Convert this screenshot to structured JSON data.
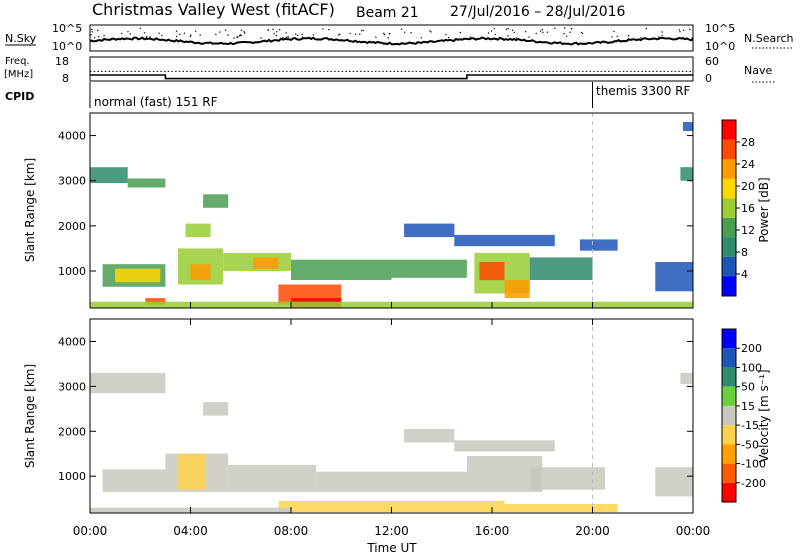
{
  "header": {
    "station": "Christmas Valley West (fitACF)",
    "beam": "Beam 21",
    "date_range": "27/Jul/2016 – 28/Jul/2016"
  },
  "meta_panels": {
    "nsky_label": "N.Sky",
    "nsky_tick_top": "10^5",
    "nsky_tick_bottom": "10^0",
    "nsearch_label": "N.Search",
    "nsearch_tick_top": "10^5",
    "nsearch_tick_bottom": "10^0",
    "freq_label_line1": "Freq.",
    "freq_label_line2": "[MHz]",
    "freq_tick_top": "18",
    "freq_tick_bottom": "8",
    "nave_label": "Nave",
    "nave_tick_top": "60",
    "nave_tick_bottom": "0",
    "cpid_label": "CPID",
    "cpid_segments": [
      {
        "name": "normal (fast) 151 RF",
        "start_hour": 0,
        "end_hour": 20
      },
      {
        "name": "themis 3300 RF",
        "start_hour": 20,
        "end_hour": 24
      }
    ],
    "freq_series": {
      "hours": [
        0,
        3,
        3,
        15,
        15,
        24
      ],
      "mhz": [
        10.5,
        10.5,
        9,
        9,
        10.5,
        10.5
      ]
    },
    "nave_series": {
      "hours": [
        0,
        24
      ],
      "value": [
        24,
        24
      ]
    }
  },
  "chart_data": [
    {
      "type": "heatmap",
      "panel": "power",
      "ylabel": "Slant Range [km]",
      "ylim": [
        180,
        4500
      ],
      "yticks": [
        1000,
        2000,
        3000,
        4000
      ],
      "xlim": [
        0,
        24
      ],
      "colorbar_label": "Power [dB]",
      "colorbar_ticks": [
        "4",
        "8",
        "12",
        "16",
        "20",
        "24",
        "28"
      ],
      "colorbar_range": [
        0,
        30
      ],
      "colorbar_colors": [
        "#0000ff",
        "#1f55b8",
        "#2f8a6e",
        "#4a9e52",
        "#9acd32",
        "#ffd700",
        "#ff9a00",
        "#ff4a00",
        "#ff0000"
      ],
      "grid": false,
      "cells": [
        {
          "t0": 0.5,
          "t1": 3.0,
          "r0": 650,
          "r1": 1150,
          "value": 12
        },
        {
          "t0": 1.0,
          "t1": 2.8,
          "r0": 750,
          "r1": 1050,
          "value": 18
        },
        {
          "t0": 3.5,
          "t1": 5.3,
          "r0": 700,
          "r1": 1500,
          "value": 16
        },
        {
          "t0": 4.0,
          "t1": 4.8,
          "r0": 800,
          "r1": 1150,
          "value": 22
        },
        {
          "t0": 5.3,
          "t1": 8.0,
          "r0": 1000,
          "r1": 1400,
          "value": 14
        },
        {
          "t0": 8.0,
          "t1": 12.0,
          "r0": 800,
          "r1": 1250,
          "value": 12
        },
        {
          "t0": 6.5,
          "t1": 7.5,
          "r0": 1050,
          "r1": 1300,
          "value": 20
        },
        {
          "t0": 7.5,
          "t1": 10.0,
          "r0": 250,
          "r1": 700,
          "value": 24
        },
        {
          "t0": 8.0,
          "t1": 10.0,
          "r0": 180,
          "r1": 400,
          "value": 28
        },
        {
          "t0": 2.2,
          "t1": 3.0,
          "r0": 250,
          "r1": 400,
          "value": 24
        },
        {
          "t0": 12.0,
          "t1": 15.0,
          "r0": 850,
          "r1": 1250,
          "value": 10
        },
        {
          "t0": 15.3,
          "t1": 17.5,
          "r0": 500,
          "r1": 1400,
          "value": 16
        },
        {
          "t0": 15.5,
          "t1": 16.5,
          "r0": 800,
          "r1": 1200,
          "value": 24
        },
        {
          "t0": 16.5,
          "t1": 17.5,
          "r0": 400,
          "r1": 800,
          "value": 22
        },
        {
          "t0": 17.5,
          "t1": 20.0,
          "r0": 800,
          "r1": 1300,
          "value": 8
        },
        {
          "t0": 12.5,
          "t1": 14.5,
          "r0": 1750,
          "r1": 2050,
          "value": 6
        },
        {
          "t0": 14.5,
          "t1": 18.5,
          "r0": 1550,
          "r1": 1800,
          "value": 6
        },
        {
          "t0": 19.5,
          "t1": 21.0,
          "r0": 1450,
          "r1": 1700,
          "value": 6
        },
        {
          "t0": 0.0,
          "t1": 1.5,
          "r0": 2950,
          "r1": 3300,
          "value": 8
        },
        {
          "t0": 1.5,
          "t1": 3.0,
          "r0": 2850,
          "r1": 3050,
          "value": 10
        },
        {
          "t0": 4.5,
          "t1": 5.5,
          "r0": 2400,
          "r1": 2700,
          "value": 12
        },
        {
          "t0": 3.8,
          "t1": 4.8,
          "r0": 1750,
          "r1": 2050,
          "value": 14
        },
        {
          "t0": 0.0,
          "t1": 24.0,
          "r0": 180,
          "r1": 320,
          "value": 14
        },
        {
          "t0": 22.5,
          "t1": 24.0,
          "r0": 550,
          "r1": 1200,
          "value": 6
        },
        {
          "t0": 23.5,
          "t1": 24.0,
          "r0": 3000,
          "r1": 3300,
          "value": 8
        },
        {
          "t0": 23.6,
          "t1": 24.0,
          "r0": 4100,
          "r1": 4300,
          "value": 4
        }
      ]
    },
    {
      "type": "heatmap",
      "panel": "velocity",
      "ylabel": "Slant Range [km]",
      "xlabel": "Time UT",
      "ylim": [
        180,
        4500
      ],
      "yticks": [
        1000,
        2000,
        3000,
        4000
      ],
      "xlim": [
        0,
        24
      ],
      "xticks": [
        "00:00",
        "04:00",
        "08:00",
        "12:00",
        "16:00",
        "20:00",
        "00:00"
      ],
      "colorbar_label": "Velocity [m s⁻¹]",
      "colorbar_ticks": [
        "200",
        "100",
        "50",
        "15",
        "-15",
        "-50",
        "-100",
        "-200"
      ],
      "colorbar_range": [
        -250,
        250
      ],
      "colorbar_colors": [
        "#ff0000",
        "#ff5a00",
        "#ffa000",
        "#ffd24a",
        "#c8c8c0",
        "#6ccf3c",
        "#2f8a6e",
        "#1f55b8",
        "#0000ff"
      ],
      "grid": false,
      "cells": [
        {
          "t0": 0.5,
          "t1": 3.0,
          "r0": 650,
          "r1": 1150,
          "value": 0
        },
        {
          "t0": 3.0,
          "t1": 5.5,
          "r0": 650,
          "r1": 1500,
          "value": 0
        },
        {
          "t0": 3.5,
          "t1": 4.6,
          "r0": 700,
          "r1": 1500,
          "value": -35
        },
        {
          "t0": 5.5,
          "t1": 9.0,
          "r0": 650,
          "r1": 1250,
          "value": 0
        },
        {
          "t0": 9.0,
          "t1": 15.0,
          "r0": 650,
          "r1": 1100,
          "value": 0
        },
        {
          "t0": 15.0,
          "t1": 18.0,
          "r0": 650,
          "r1": 1450,
          "value": 0
        },
        {
          "t0": 17.5,
          "t1": 20.5,
          "r0": 700,
          "r1": 1200,
          "value": 0
        },
        {
          "t0": 7.5,
          "t1": 16.5,
          "r0": 200,
          "r1": 450,
          "value": -40
        },
        {
          "t0": 16.5,
          "t1": 21.0,
          "r0": 200,
          "r1": 380,
          "value": -45
        },
        {
          "t0": 0.0,
          "t1": 3.0,
          "r0": 2850,
          "r1": 3300,
          "value": 0
        },
        {
          "t0": 4.5,
          "t1": 5.5,
          "r0": 2350,
          "r1": 2650,
          "value": 20
        },
        {
          "t0": 12.5,
          "t1": 14.5,
          "r0": 1750,
          "r1": 2050,
          "value": 0
        },
        {
          "t0": 14.5,
          "t1": 18.5,
          "r0": 1550,
          "r1": 1800,
          "value": 0
        },
        {
          "t0": 22.5,
          "t1": 24.0,
          "r0": 550,
          "r1": 1200,
          "value": 0
        },
        {
          "t0": 23.5,
          "t1": 24.0,
          "r0": 3050,
          "r1": 3300,
          "value": 0
        },
        {
          "t0": 0.0,
          "t1": 8.0,
          "r0": 180,
          "r1": 300,
          "value": 0
        }
      ]
    }
  ]
}
